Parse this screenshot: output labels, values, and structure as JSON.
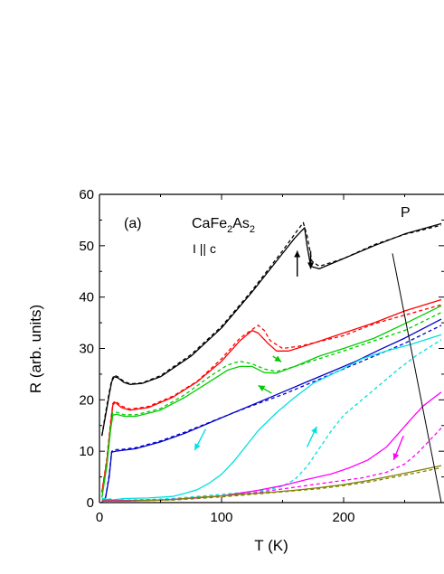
{
  "chart_data": {
    "type": "line",
    "title": "",
    "xlabel": "T (K)",
    "ylabel": "R (arb. units)",
    "xlim": [
      0,
      280
    ],
    "ylim": [
      0,
      60
    ],
    "x_ticks": [
      0,
      100,
      200
    ],
    "y_ticks": [
      0,
      10,
      20,
      30,
      40,
      50,
      60
    ],
    "grid": false,
    "annotations": {
      "panel": "(a)",
      "compound": "CaFe",
      "sub1": "2",
      "compound_mid": "As",
      "sub2": "2",
      "orientation": "I || c",
      "pressure_label": "P"
    },
    "series": [
      {
        "color": "#000000",
        "style": "solid",
        "points": [
          [
            2,
            13
          ],
          [
            5,
            17
          ],
          [
            8,
            21
          ],
          [
            10,
            23.5
          ],
          [
            12,
            24.5
          ],
          [
            15,
            24.3
          ],
          [
            20,
            23.4
          ],
          [
            25,
            23
          ],
          [
            35,
            23.2
          ],
          [
            50,
            24.5
          ],
          [
            75,
            28.5
          ],
          [
            100,
            34
          ],
          [
            125,
            41
          ],
          [
            150,
            48.5
          ],
          [
            160,
            51.5
          ],
          [
            168,
            53.5
          ],
          [
            170,
            50
          ],
          [
            173,
            46
          ],
          [
            180,
            45.5
          ],
          [
            200,
            47.5
          ],
          [
            225,
            50
          ],
          [
            250,
            52.3
          ],
          [
            280,
            54.3
          ]
        ]
      },
      {
        "color": "#000000",
        "style": "dashed",
        "points": [
          [
            2,
            13
          ],
          [
            5,
            17.5
          ],
          [
            8,
            21.5
          ],
          [
            10,
            23.8
          ],
          [
            12,
            24.8
          ],
          [
            15,
            24.5
          ],
          [
            20,
            23.6
          ],
          [
            25,
            23.1
          ],
          [
            35,
            23.3
          ],
          [
            50,
            24.7
          ],
          [
            75,
            28.8
          ],
          [
            100,
            34.3
          ],
          [
            125,
            41.3
          ],
          [
            150,
            49
          ],
          [
            160,
            52.3
          ],
          [
            167,
            54.5
          ],
          [
            170,
            52
          ],
          [
            174,
            47
          ],
          [
            180,
            46
          ],
          [
            200,
            47.5
          ],
          [
            225,
            50.2
          ],
          [
            250,
            52.2
          ],
          [
            280,
            54
          ]
        ]
      },
      {
        "color": "#ff0000",
        "style": "solid",
        "points": [
          [
            2,
            2
          ],
          [
            6,
            8
          ],
          [
            9,
            15
          ],
          [
            11,
            19
          ],
          [
            13,
            19.5
          ],
          [
            18,
            18.5
          ],
          [
            25,
            18
          ],
          [
            40,
            18.5
          ],
          [
            60,
            20.5
          ],
          [
            80,
            23.5
          ],
          [
            100,
            27.5
          ],
          [
            115,
            31.5
          ],
          [
            125,
            33.5
          ],
          [
            130,
            33
          ],
          [
            138,
            31
          ],
          [
            145,
            29.5
          ],
          [
            155,
            29.5
          ],
          [
            175,
            31
          ],
          [
            200,
            33
          ],
          [
            225,
            35
          ],
          [
            250,
            37.3
          ],
          [
            280,
            39.5
          ]
        ]
      },
      {
        "color": "#ff0000",
        "style": "dashed",
        "points": [
          [
            2,
            2
          ],
          [
            6,
            8.5
          ],
          [
            9,
            15.5
          ],
          [
            11,
            19.3
          ],
          [
            13,
            19.8
          ],
          [
            18,
            18.8
          ],
          [
            25,
            18.2
          ],
          [
            40,
            18.7
          ],
          [
            60,
            20.7
          ],
          [
            80,
            23.6
          ],
          [
            100,
            28
          ],
          [
            115,
            32
          ],
          [
            130,
            34.5
          ],
          [
            135,
            33.5
          ],
          [
            140,
            31.5
          ],
          [
            150,
            30
          ],
          [
            165,
            30.5
          ],
          [
            200,
            32.5
          ],
          [
            225,
            34.8
          ],
          [
            250,
            36.5
          ],
          [
            280,
            38.5
          ]
        ]
      },
      {
        "color": "#00cc00",
        "style": "solid",
        "points": [
          [
            2,
            1
          ],
          [
            6,
            7
          ],
          [
            9,
            14
          ],
          [
            11,
            17
          ],
          [
            14,
            17.2
          ],
          [
            20,
            16.8
          ],
          [
            30,
            16.8
          ],
          [
            50,
            18
          ],
          [
            70,
            20.5
          ],
          [
            90,
            23.5
          ],
          [
            105,
            25.8
          ],
          [
            115,
            26.5
          ],
          [
            125,
            26.5
          ],
          [
            135,
            25.3
          ],
          [
            145,
            25.2
          ],
          [
            160,
            26.5
          ],
          [
            180,
            28.5
          ],
          [
            200,
            30
          ],
          [
            225,
            32
          ],
          [
            250,
            34.8
          ],
          [
            280,
            38.3
          ]
        ]
      },
      {
        "color": "#00cc00",
        "style": "dashed",
        "points": [
          [
            2,
            1
          ],
          [
            6,
            7.5
          ],
          [
            9,
            14.5
          ],
          [
            11,
            17.5
          ],
          [
            14,
            17.6
          ],
          [
            20,
            17.1
          ],
          [
            30,
            17.1
          ],
          [
            50,
            18.3
          ],
          [
            70,
            21
          ],
          [
            90,
            24.5
          ],
          [
            105,
            26.8
          ],
          [
            115,
            27.5
          ],
          [
            125,
            27
          ],
          [
            135,
            26
          ],
          [
            145,
            25.5
          ],
          [
            160,
            26.5
          ],
          [
            180,
            28
          ],
          [
            200,
            29.5
          ],
          [
            225,
            31.5
          ],
          [
            250,
            33.5
          ],
          [
            280,
            37
          ]
        ]
      },
      {
        "color": "#0000cc",
        "style": "solid",
        "points": [
          [
            2,
            0
          ],
          [
            5,
            1
          ],
          [
            8,
            5
          ],
          [
            10,
            9.8
          ],
          [
            13,
            10
          ],
          [
            20,
            10.2
          ],
          [
            30,
            10.5
          ],
          [
            50,
            11.8
          ],
          [
            70,
            13.5
          ],
          [
            90,
            15.5
          ],
          [
            110,
            17.5
          ],
          [
            130,
            19.5
          ],
          [
            150,
            21.5
          ],
          [
            170,
            23.5
          ],
          [
            190,
            25.5
          ],
          [
            210,
            27.5
          ],
          [
            230,
            29.8
          ],
          [
            250,
            32
          ],
          [
            280,
            35.7
          ]
        ]
      },
      {
        "color": "#0000cc",
        "style": "dashed",
        "points": [
          [
            2,
            0
          ],
          [
            5,
            1
          ],
          [
            8,
            5.5
          ],
          [
            10,
            10
          ],
          [
            13,
            10.3
          ],
          [
            20,
            10.4
          ],
          [
            30,
            10.7
          ],
          [
            50,
            12
          ],
          [
            70,
            13.7
          ],
          [
            90,
            15.6
          ],
          [
            110,
            17.5
          ],
          [
            130,
            19.3
          ],
          [
            150,
            21
          ],
          [
            170,
            23
          ],
          [
            190,
            25
          ],
          [
            210,
            27
          ],
          [
            230,
            29
          ],
          [
            250,
            31
          ],
          [
            280,
            34.5
          ]
        ]
      },
      {
        "color": "#00e0e0",
        "style": "solid",
        "points": [
          [
            2,
            0.8
          ],
          [
            10,
            0.5
          ],
          [
            20,
            0.8
          ],
          [
            40,
            0.9
          ],
          [
            60,
            1.2
          ],
          [
            70,
            1.8
          ],
          [
            80,
            2.5
          ],
          [
            90,
            3.8
          ],
          [
            100,
            5.5
          ],
          [
            110,
            8
          ],
          [
            120,
            11
          ],
          [
            130,
            14
          ],
          [
            145,
            17.5
          ],
          [
            160,
            20.5
          ],
          [
            175,
            23.2
          ],
          [
            195,
            25.5
          ],
          [
            215,
            28
          ],
          [
            235,
            29.5
          ],
          [
            255,
            30.8
          ],
          [
            280,
            32.7
          ]
        ]
      },
      {
        "color": "#00e0e0",
        "style": "dashed",
        "points": [
          [
            2,
            0.8
          ],
          [
            20,
            0.5
          ],
          [
            40,
            0.6
          ],
          [
            60,
            0.8
          ],
          [
            80,
            1.2
          ],
          [
            100,
            1.6
          ],
          [
            120,
            2
          ],
          [
            140,
            2.6
          ],
          [
            150,
            3.2
          ],
          [
            160,
            4.5
          ],
          [
            170,
            7
          ],
          [
            180,
            10.5
          ],
          [
            190,
            14
          ],
          [
            200,
            17
          ],
          [
            215,
            20
          ],
          [
            230,
            23
          ],
          [
            245,
            26
          ],
          [
            260,
            28.7
          ],
          [
            280,
            31.7
          ]
        ]
      },
      {
        "color": "#ff00ff",
        "style": "solid",
        "points": [
          [
            2,
            0.5
          ],
          [
            20,
            0.4
          ],
          [
            50,
            0.5
          ],
          [
            80,
            0.9
          ],
          [
            100,
            1.3
          ],
          [
            130,
            2.4
          ],
          [
            150,
            3.3
          ],
          [
            170,
            4.5
          ],
          [
            190,
            5.6
          ],
          [
            205,
            6.8
          ],
          [
            220,
            8.3
          ],
          [
            235,
            10.8
          ],
          [
            245,
            13.5
          ],
          [
            255,
            16.2
          ],
          [
            265,
            18.8
          ],
          [
            280,
            21.5
          ]
        ]
      },
      {
        "color": "#ff00ff",
        "style": "dashed",
        "points": [
          [
            2,
            0.5
          ],
          [
            20,
            0.4
          ],
          [
            50,
            0.5
          ],
          [
            80,
            0.9
          ],
          [
            100,
            1.3
          ],
          [
            130,
            2
          ],
          [
            160,
            3
          ],
          [
            190,
            4
          ],
          [
            215,
            4.8
          ],
          [
            235,
            5.9
          ],
          [
            250,
            7.5
          ],
          [
            260,
            9.5
          ],
          [
            270,
            12
          ],
          [
            280,
            14.5
          ]
        ]
      },
      {
        "color": "#808000",
        "style": "solid",
        "points": [
          [
            2,
            0.3
          ],
          [
            20,
            0.3
          ],
          [
            40,
            0.4
          ],
          [
            60,
            0.6
          ],
          [
            80,
            1
          ],
          [
            100,
            1.3
          ],
          [
            120,
            1.7
          ],
          [
            140,
            2
          ],
          [
            160,
            2.4
          ],
          [
            180,
            2.9
          ],
          [
            200,
            3.5
          ],
          [
            220,
            4.3
          ],
          [
            240,
            5.2
          ],
          [
            260,
            6.2
          ],
          [
            280,
            7.2
          ]
        ]
      },
      {
        "color": "#808000",
        "style": "dashed",
        "points": [
          [
            2,
            0.3
          ],
          [
            20,
            0.3
          ],
          [
            40,
            0.4
          ],
          [
            60,
            0.5
          ],
          [
            80,
            0.8
          ],
          [
            100,
            1.1
          ],
          [
            120,
            1.5
          ],
          [
            140,
            1.9
          ],
          [
            160,
            2.3
          ],
          [
            180,
            2.7
          ],
          [
            200,
            3.3
          ],
          [
            220,
            4
          ],
          [
            240,
            4.9
          ],
          [
            260,
            5.8
          ],
          [
            280,
            6.8
          ]
        ]
      }
    ],
    "pressure_line": [
      [
        240,
        48.5
      ],
      [
        280,
        0
      ]
    ],
    "arrows": [
      {
        "color": "#000000",
        "from": [
          173,
          49
        ],
        "to": [
          173,
          45.5
        ]
      },
      {
        "color": "#000000",
        "from": [
          162,
          44
        ],
        "to": [
          162,
          49
        ]
      },
      {
        "color": "#00cc00",
        "from": [
          142,
          28.5
        ],
        "to": [
          149,
          27.4
        ]
      },
      {
        "color": "#00cc00",
        "from": [
          141,
          21.3
        ],
        "to": [
          130,
          22.8
        ]
      },
      {
        "color": "#00e0e0",
        "from": [
          87,
          14.3
        ],
        "to": [
          78,
          10.2
        ]
      },
      {
        "color": "#00e0e0",
        "from": [
          170,
          10.8
        ],
        "to": [
          178,
          14.8
        ]
      },
      {
        "color": "#ff00ff",
        "from": [
          249,
          13
        ],
        "to": [
          241,
          8.3
        ]
      }
    ]
  }
}
